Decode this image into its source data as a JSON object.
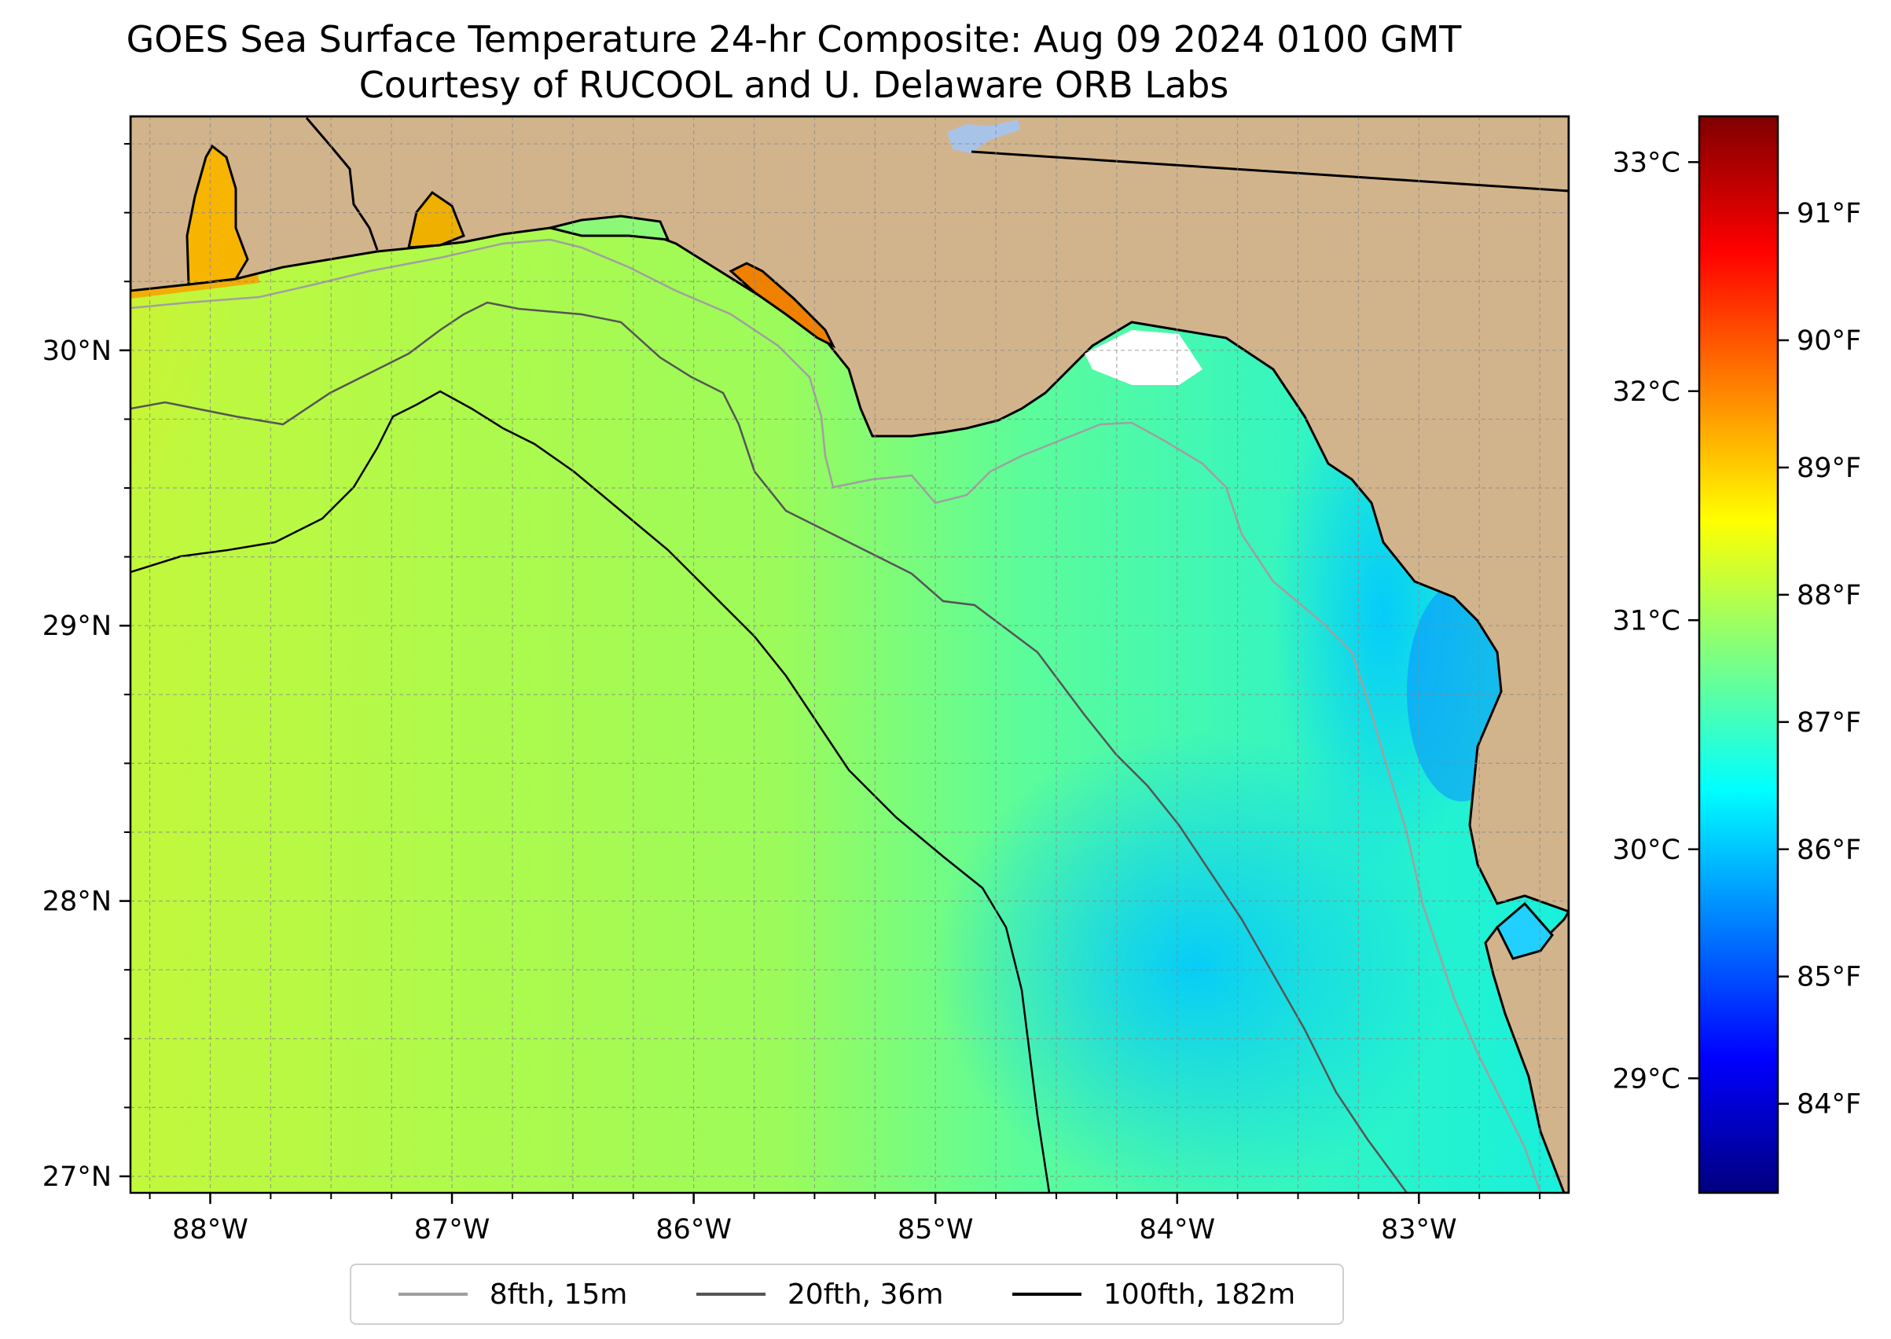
{
  "title": {
    "line1": "GOES Sea Surface Temperature 24-hr Composite: Aug 09 2024 0100 GMT",
    "line2": "Courtesy of RUCOOL and U. Delaware ORB Labs"
  },
  "map": {
    "lon_range": [
      -88.33,
      -82.38
    ],
    "lat_range": [
      26.94,
      30.85
    ],
    "lon_ticks": [
      {
        "value": -88,
        "label": "88°W"
      },
      {
        "value": -87,
        "label": "87°W"
      },
      {
        "value": -86,
        "label": "86°W"
      },
      {
        "value": -85,
        "label": "85°W"
      },
      {
        "value": -84,
        "label": "84°W"
      },
      {
        "value": -83,
        "label": "83°W"
      }
    ],
    "lat_ticks": [
      {
        "value": 27,
        "label": "27°N"
      },
      {
        "value": 28,
        "label": "28°N"
      },
      {
        "value": 29,
        "label": "29°N"
      },
      {
        "value": 30,
        "label": "30°N"
      }
    ],
    "gridlines": true,
    "colors": {
      "land": "#d2b48c",
      "coastline": "#000000",
      "contour_8fth": "#a0a0a0",
      "contour_20fth": "#555555",
      "contour_100fth": "#000000",
      "lake": "#a8c3e8"
    }
  },
  "colorbar": {
    "colormap": "jet",
    "celsius_range": [
      28.5,
      33.2
    ],
    "celsius_ticks": [
      {
        "value": 29,
        "label": "29°C"
      },
      {
        "value": 30,
        "label": "30°C"
      },
      {
        "value": 31,
        "label": "31°C"
      },
      {
        "value": 32,
        "label": "32°C"
      },
      {
        "value": 33,
        "label": "33°C"
      }
    ],
    "fahrenheit_ticks": [
      {
        "value": 84,
        "label": "84°F"
      },
      {
        "value": 85,
        "label": "85°F"
      },
      {
        "value": 86,
        "label": "86°F"
      },
      {
        "value": 87,
        "label": "87°F"
      },
      {
        "value": 88,
        "label": "88°F"
      },
      {
        "value": 89,
        "label": "89°F"
      },
      {
        "value": 90,
        "label": "90°F"
      },
      {
        "value": 91,
        "label": "91°F"
      }
    ]
  },
  "legend": {
    "items": [
      {
        "label": "8fth, 15m",
        "color": "#a0a0a0"
      },
      {
        "label": "20fth, 36m",
        "color": "#555555"
      },
      {
        "label": "100fth, 182m",
        "color": "#000000"
      }
    ]
  }
}
